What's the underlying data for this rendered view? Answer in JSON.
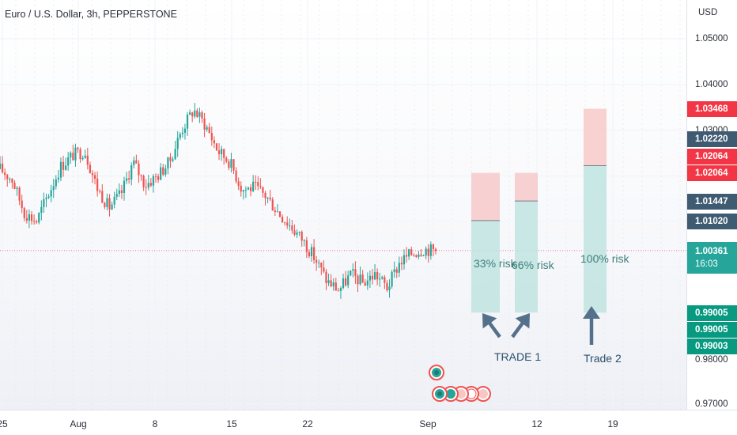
{
  "header": {
    "title": "Euro / U.S. Dollar, 3h, PEPPERSTONE"
  },
  "price_axis": {
    "currency": "USD",
    "ticks": [
      "1.05000",
      "1.04000",
      "1.03000",
      "0.98000",
      "0.97000"
    ],
    "labels": [
      {
        "text": "1.03468",
        "sub": "",
        "value": 1.03468,
        "color": "#f23645"
      },
      {
        "text": "1.02220",
        "sub": "",
        "value": 1.0222,
        "color": "#3f5b71"
      },
      {
        "text": "1.02064",
        "sub": "",
        "value": 1.02064,
        "color": "#f23645"
      },
      {
        "text": "1.02064",
        "sub": "",
        "value": 1.02064,
        "color": "#f23645"
      },
      {
        "text": "1.01447",
        "sub": "",
        "value": 1.01447,
        "color": "#3f5b71"
      },
      {
        "text": "1.01020",
        "sub": "",
        "value": 1.0102,
        "color": "#3f5b71"
      },
      {
        "text": "1.00361",
        "sub": "16:03",
        "value": 1.00361,
        "color": "#26a69a"
      },
      {
        "text": "0.99005",
        "sub": "",
        "value": 0.99005,
        "color": "#089981"
      },
      {
        "text": "0.99005",
        "sub": "",
        "value": 0.99005,
        "color": "#089981"
      },
      {
        "text": "0.99003",
        "sub": "",
        "value": 0.99003,
        "color": "#089981"
      }
    ]
  },
  "time_axis": {
    "ticks": [
      "25",
      "Aug",
      "8",
      "15",
      "22",
      "Sep",
      "12",
      "19"
    ]
  },
  "annotations": {
    "risk1": "33% risk",
    "risk2": "66% risk",
    "risk3": "100% risk",
    "trade1": "TRADE 1",
    "trade2": "Trade 2"
  },
  "chart_data": {
    "type": "candlestick",
    "title": "Euro / U.S. Dollar, 3h, PEPPERSTONE",
    "symbol": "EURUSD",
    "interval": "3h",
    "broker": "PEPPERSTONE",
    "currency": "USD",
    "ylim": [
      0.9685,
      1.0585
    ],
    "last_price": 1.00361,
    "countdown": "16:03",
    "x_ticks": [
      "25",
      "Aug",
      "8",
      "15",
      "22",
      "Sep",
      "12",
      "19"
    ],
    "y_ticks": [
      1.05,
      1.04,
      1.03,
      1.02,
      1.01,
      1.0,
      0.99,
      0.98,
      0.97
    ],
    "grid": true,
    "up_color": "#26a69a",
    "down_color": "#ef5350",
    "price_path": [
      {
        "date": "Jul 25",
        "close": 1.0215
      },
      {
        "date": "Jul 26",
        "close": 1.0192
      },
      {
        "date": "Jul 27",
        "close": 1.012
      },
      {
        "date": "Jul 28",
        "close": 1.01
      },
      {
        "date": "Jul 29",
        "close": 1.016
      },
      {
        "date": "Jul 31",
        "close": 1.022
      },
      {
        "date": "Aug 1",
        "close": 1.0245
      },
      {
        "date": "Aug 2",
        "close": 1.0255
      },
      {
        "date": "Aug 3",
        "close": 1.0175
      },
      {
        "date": "Aug 4",
        "close": 1.013
      },
      {
        "date": "Aug 5",
        "close": 1.016
      },
      {
        "date": "Aug 6",
        "close": 1.023
      },
      {
        "date": "Aug 7",
        "close": 1.018
      },
      {
        "date": "Aug 8",
        "close": 1.02
      },
      {
        "date": "Aug 9",
        "close": 1.023
      },
      {
        "date": "Aug 10",
        "close": 1.03
      },
      {
        "date": "Aug 11",
        "close": 1.0345
      },
      {
        "date": "Aug 12",
        "close": 1.031
      },
      {
        "date": "Aug 13",
        "close": 1.0255
      },
      {
        "date": "Aug 15",
        "close": 1.023
      },
      {
        "date": "Aug 16",
        "close": 1.017
      },
      {
        "date": "Aug 17",
        "close": 1.0175
      },
      {
        "date": "Aug 18",
        "close": 1.0155
      },
      {
        "date": "Aug 19",
        "close": 1.012
      },
      {
        "date": "Aug 20",
        "close": 1.009
      },
      {
        "date": "Aug 21",
        "close": 1.006
      },
      {
        "date": "Aug 22",
        "close": 1.002
      },
      {
        "date": "Aug 23",
        "close": 0.997
      },
      {
        "date": "Aug 24",
        "close": 0.995
      },
      {
        "date": "Aug 25",
        "close": 0.9985
      },
      {
        "date": "Aug 26",
        "close": 0.9965
      },
      {
        "date": "Aug 27",
        "close": 0.9985
      },
      {
        "date": "Aug 28",
        "close": 0.9955
      },
      {
        "date": "Aug 29",
        "close": 1.001
      },
      {
        "date": "Aug 30",
        "close": 1.003
      },
      {
        "date": "Aug 31",
        "close": 1.004
      },
      {
        "date": "Sep 1",
        "close": 1.0036
      }
    ],
    "positions": [
      {
        "name": "33% risk",
        "entry": 1.0102,
        "stop": 1.02064,
        "target": 0.99005
      },
      {
        "name": "66% risk",
        "entry": 1.01447,
        "stop": 1.02064,
        "target": 0.99005
      },
      {
        "name": "100% risk",
        "entry": 1.0222,
        "stop": 1.03468,
        "target": 0.99003
      }
    ],
    "trade_groups": [
      {
        "label": "TRADE 1",
        "positions": [
          "33% risk",
          "66% risk"
        ]
      },
      {
        "label": "Trade 2",
        "positions": [
          "100% risk"
        ]
      }
    ]
  }
}
